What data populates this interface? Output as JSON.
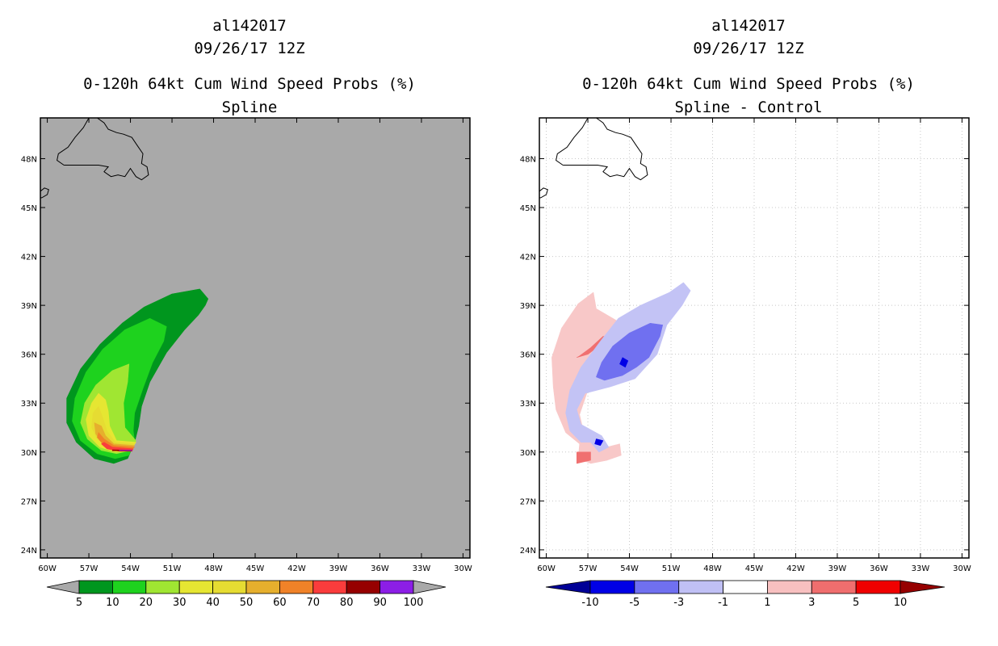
{
  "chart_data": [
    {
      "type": "contour-map",
      "storm_id": "al142017",
      "datetime": "09/26/17 12Z",
      "title": "0-120h 64kt Cum Wind Speed Probs (%)",
      "subtitle": "Spline",
      "background": "#a9a9a9",
      "grid": false,
      "lon_range": [
        -60.5,
        -29.5
      ],
      "lat_range": [
        23.5,
        50.5
      ],
      "x_ticks": [
        "60W",
        "57W",
        "54W",
        "51W",
        "48W",
        "45W",
        "42W",
        "39W",
        "36W",
        "33W",
        "30W"
      ],
      "x_tick_values": [
        -60,
        -57,
        -54,
        -51,
        -48,
        -45,
        -42,
        -39,
        -36,
        -33,
        -30
      ],
      "y_ticks": [
        "24N",
        "27N",
        "30N",
        "33N",
        "36N",
        "39N",
        "42N",
        "45N",
        "48N"
      ],
      "y_tick_values": [
        24,
        27,
        30,
        33,
        36,
        39,
        42,
        45,
        48
      ],
      "colorbar": {
        "labels": [
          "5",
          "10",
          "20",
          "30",
          "40",
          "50",
          "60",
          "70",
          "80",
          "90",
          "100"
        ],
        "colors": [
          "#00961e",
          "#1ed21e",
          "#a0e632",
          "#e6e632",
          "#e6dc32",
          "#e6af2d",
          "#f08228",
          "#fa3c3c",
          "#960000",
          "#8c1ee6"
        ],
        "under_color": "#a9a9a9",
        "over_color": "#a9a9a9"
      },
      "contours": [
        {
          "level": 5,
          "color": "#00961e",
          "points": [
            [
              -53.7,
              30.6
            ],
            [
              -53.4,
              31.6
            ],
            [
              -53.2,
              32.8
            ],
            [
              -52.6,
              34.3
            ],
            [
              -51.4,
              36.1
            ],
            [
              -50.1,
              37.5
            ],
            [
              -49.1,
              38.4
            ],
            [
              -48.6,
              39.0
            ],
            [
              -48.4,
              39.4
            ],
            [
              -49.0,
              40.0
            ],
            [
              -51.0,
              39.7
            ],
            [
              -53.0,
              38.9
            ],
            [
              -54.6,
              37.9
            ],
            [
              -56.2,
              36.6
            ],
            [
              -57.6,
              35.1
            ],
            [
              -58.6,
              33.3
            ],
            [
              -58.6,
              31.8
            ],
            [
              -57.9,
              30.6
            ],
            [
              -56.6,
              29.6
            ],
            [
              -55.2,
              29.3
            ],
            [
              -54.2,
              29.6
            ]
          ]
        },
        {
          "level": 10,
          "color": "#1ed21e",
          "points": [
            [
              -53.7,
              30.7
            ],
            [
              -53.8,
              31.3
            ],
            [
              -53.7,
              32.4
            ],
            [
              -53.1,
              33.9
            ],
            [
              -52.4,
              35.5
            ],
            [
              -51.6,
              36.8
            ],
            [
              -51.4,
              37.7
            ],
            [
              -52.6,
              38.2
            ],
            [
              -54.4,
              37.5
            ],
            [
              -56.0,
              36.3
            ],
            [
              -57.2,
              34.9
            ],
            [
              -58.0,
              33.3
            ],
            [
              -58.2,
              31.9
            ],
            [
              -57.6,
              30.7
            ],
            [
              -56.4,
              29.9
            ],
            [
              -55.1,
              29.6
            ],
            [
              -54.1,
              29.8
            ]
          ]
        },
        {
          "level": 20,
          "color": "#a0e632",
          "points": [
            [
              -53.6,
              30.7
            ],
            [
              -54.4,
              31.5
            ],
            [
              -54.5,
              33.0
            ],
            [
              -54.2,
              34.3
            ],
            [
              -54.1,
              35.4
            ],
            [
              -55.3,
              35.0
            ],
            [
              -56.5,
              34.1
            ],
            [
              -57.3,
              33.0
            ],
            [
              -57.6,
              31.8
            ],
            [
              -57.1,
              30.8
            ],
            [
              -56.1,
              30.1
            ],
            [
              -55.0,
              29.9
            ],
            [
              -54.0,
              30.1
            ]
          ]
        },
        {
          "level": 30,
          "color": "#e6e632",
          "points": [
            [
              -53.6,
              30.6
            ],
            [
              -55.0,
              30.7
            ],
            [
              -55.5,
              31.6
            ],
            [
              -55.6,
              32.5
            ],
            [
              -55.8,
              33.2
            ],
            [
              -56.3,
              33.6
            ],
            [
              -56.8,
              33.0
            ],
            [
              -57.2,
              32.0
            ],
            [
              -57.0,
              31.0
            ],
            [
              -56.2,
              30.3
            ],
            [
              -55.1,
              30.0
            ],
            [
              -54.0,
              30.1
            ]
          ]
        },
        {
          "level": 40,
          "color": "#e6dc32",
          "points": [
            [
              -53.7,
              30.5
            ],
            [
              -55.1,
              30.6
            ],
            [
              -55.7,
              31.3
            ],
            [
              -56.0,
              32.1
            ],
            [
              -56.3,
              32.8
            ],
            [
              -56.7,
              32.4
            ],
            [
              -56.8,
              31.5
            ],
            [
              -56.4,
              30.8
            ],
            [
              -55.5,
              30.3
            ],
            [
              -54.3,
              30.2
            ]
          ]
        },
        {
          "level": 50,
          "color": "#e6af2d",
          "points": [
            [
              -53.7,
              30.4
            ],
            [
              -55.2,
              30.5
            ],
            [
              -55.8,
              31.0
            ],
            [
              -56.1,
              31.6
            ],
            [
              -56.6,
              31.8
            ],
            [
              -56.5,
              31.1
            ],
            [
              -56.0,
              30.6
            ],
            [
              -55.0,
              30.3
            ],
            [
              -54.0,
              30.2
            ]
          ]
        },
        {
          "level": 60,
          "color": "#f08228",
          "points": [
            [
              -53.7,
              30.3
            ],
            [
              -55.2,
              30.4
            ],
            [
              -55.9,
              30.8
            ],
            [
              -56.3,
              31.2
            ],
            [
              -56.4,
              30.9
            ],
            [
              -56.0,
              30.5
            ],
            [
              -55.0,
              30.2
            ],
            [
              -54.0,
              30.1
            ]
          ]
        },
        {
          "level": 70,
          "color": "#fa3c3c",
          "points": [
            [
              -53.8,
              30.2
            ],
            [
              -55.3,
              30.3
            ],
            [
              -55.9,
              30.6
            ],
            [
              -56.1,
              30.5
            ],
            [
              -55.7,
              30.2
            ],
            [
              -54.8,
              30.05
            ],
            [
              -53.9,
              30.05
            ]
          ]
        },
        {
          "level": 80,
          "color": "#960000",
          "points": [
            [
              -53.9,
              30.12
            ],
            [
              -55.3,
              30.14
            ],
            [
              -55.3,
              30.08
            ],
            [
              -53.9,
              30.07
            ]
          ]
        },
        {
          "level": 90,
          "color": "#8c1ee6",
          "points": [
            [
              -53.9,
              30.11
            ],
            [
              -54.8,
              30.11
            ],
            [
              -54.8,
              30.09
            ],
            [
              -53.9,
              30.09
            ]
          ]
        }
      ]
    },
    {
      "type": "contour-map",
      "storm_id": "al142017",
      "datetime": "09/26/17 12Z",
      "title": "0-120h 64kt Cum Wind Speed Probs (%)",
      "subtitle": "Spline - Control",
      "background": "#ffffff",
      "grid": true,
      "lon_range": [
        -60.5,
        -29.5
      ],
      "lat_range": [
        23.5,
        50.5
      ],
      "x_ticks": [
        "60W",
        "57W",
        "54W",
        "51W",
        "48W",
        "45W",
        "42W",
        "39W",
        "36W",
        "33W",
        "30W"
      ],
      "x_tick_values": [
        -60,
        -57,
        -54,
        -51,
        -48,
        -45,
        -42,
        -39,
        -36,
        -33,
        -30
      ],
      "y_ticks": [
        "24N",
        "27N",
        "30N",
        "33N",
        "36N",
        "39N",
        "42N",
        "45N",
        "48N"
      ],
      "y_tick_values": [
        24,
        27,
        30,
        33,
        36,
        39,
        42,
        45,
        48
      ],
      "colorbar": {
        "labels": [
          "-10",
          "-5",
          "-3",
          "-1",
          "1",
          "3",
          "5",
          "10"
        ],
        "colors": [
          "#0000e6",
          "#7070f0",
          "#c0c0f5",
          "#ffffff",
          "#f8c0c0",
          "#f06e6e",
          "#f00000"
        ],
        "under_color": "#000096",
        "over_color": "#960000"
      },
      "contours": [
        {
          "level": 1,
          "color": "#f8c8c8",
          "points": [
            [
              -56.3,
              30.6
            ],
            [
              -57.3,
              31.2
            ],
            [
              -57.6,
              32.3
            ],
            [
              -57.0,
              33.8
            ],
            [
              -55.8,
              35.3
            ],
            [
              -54.4,
              36.6
            ],
            [
              -53.8,
              37.4
            ],
            [
              -55.0,
              38.1
            ],
            [
              -56.4,
              38.8
            ],
            [
              -56.6,
              39.8
            ],
            [
              -57.7,
              39.1
            ],
            [
              -58.9,
              37.6
            ],
            [
              -59.6,
              35.8
            ],
            [
              -59.5,
              34.0
            ],
            [
              -59.3,
              32.6
            ],
            [
              -58.6,
              31.2
            ],
            [
              -57.6,
              30.5
            ],
            [
              -57.7,
              29.6
            ],
            [
              -56.8,
              29.3
            ],
            [
              -55.6,
              29.5
            ],
            [
              -54.6,
              29.8
            ],
            [
              -54.7,
              30.5
            ],
            [
              -55.6,
              30.3
            ]
          ]
        },
        {
          "level": 3,
          "color": "#f07070",
          "points": [
            [
              -57.8,
              35.8
            ],
            [
              -57.0,
              36.0
            ],
            [
              -55.9,
              36.7
            ],
            [
              -55.4,
              37.1
            ],
            [
              -55.9,
              37.1
            ],
            [
              -56.8,
              36.4
            ],
            [
              -57.6,
              35.9
            ]
          ]
        },
        {
          "level": 3,
          "color": "#f07070",
          "points": [
            [
              -57.8,
              29.3
            ],
            [
              -56.8,
              29.5
            ],
            [
              -56.8,
              30.0
            ],
            [
              -57.8,
              30.0
            ]
          ]
        },
        {
          "level": -1,
          "color": "#c3c3f5",
          "points": [
            [
              -56.8,
              30.6
            ],
            [
              -56.2,
              30.0
            ],
            [
              -55.5,
              30.3
            ],
            [
              -56.0,
              31.0
            ],
            [
              -57.5,
              31.7
            ],
            [
              -57.8,
              32.6
            ],
            [
              -57.2,
              33.6
            ],
            [
              -55.4,
              34.0
            ],
            [
              -53.6,
              34.5
            ],
            [
              -52.0,
              36.0
            ],
            [
              -51.3,
              37.8
            ],
            [
              -50.2,
              39.0
            ],
            [
              -49.6,
              39.9
            ],
            [
              -50.1,
              40.4
            ],
            [
              -51.1,
              39.8
            ],
            [
              -53.2,
              39.0
            ],
            [
              -54.8,
              38.2
            ],
            [
              -56.0,
              36.9
            ],
            [
              -57.5,
              35.2
            ],
            [
              -58.3,
              33.8
            ],
            [
              -58.6,
              32.4
            ],
            [
              -58.3,
              31.3
            ],
            [
              -57.5,
              30.6
            ]
          ]
        },
        {
          "level": -3,
          "color": "#7070f0",
          "points": [
            [
              -52.6,
              35.8
            ],
            [
              -51.8,
              37.1
            ],
            [
              -51.6,
              37.8
            ],
            [
              -52.5,
              37.9
            ],
            [
              -54.0,
              37.3
            ],
            [
              -55.2,
              36.5
            ],
            [
              -56.0,
              35.5
            ],
            [
              -56.4,
              34.6
            ],
            [
              -55.8,
              34.4
            ],
            [
              -54.5,
              34.7
            ],
            [
              -53.5,
              35.2
            ]
          ]
        },
        {
          "level": -5,
          "color": "#0000e6",
          "points": [
            [
              -54.3,
              35.2
            ],
            [
              -54.1,
              35.6
            ],
            [
              -54.5,
              35.8
            ],
            [
              -54.7,
              35.4
            ]
          ]
        },
        {
          "level": -5,
          "color": "#0000e6",
          "points": [
            [
              -56.1,
              30.4
            ],
            [
              -55.9,
              30.7
            ],
            [
              -56.4,
              30.8
            ],
            [
              -56.5,
              30.5
            ]
          ]
        }
      ]
    }
  ]
}
